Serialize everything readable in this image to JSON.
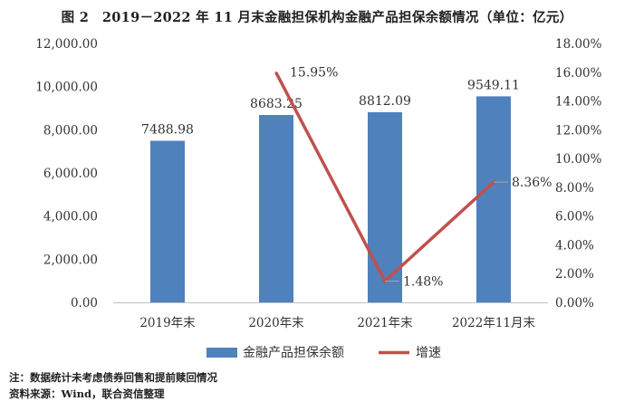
{
  "figure_title": "图 2　2019－2022 年 11 月末金融担保机构金融产品担保余额情况（单位：亿元）",
  "chart_data": {
    "type": "bar",
    "categories": [
      "2019年末",
      "2020年末",
      "2021年末",
      "2022年11月末"
    ],
    "series": [
      {
        "name": "金融产品担保余额",
        "type": "bar",
        "axis": "left",
        "values": [
          7488.98,
          8683.25,
          8812.09,
          9549.11
        ],
        "labels": [
          "7488.98",
          "8683.25",
          "8812.09",
          "9549.11"
        ]
      },
      {
        "name": "增速",
        "type": "line",
        "axis": "right",
        "values": [
          null,
          15.95,
          1.48,
          8.36
        ],
        "labels": [
          "",
          "15.95%",
          "1.48%",
          "8.36%"
        ]
      }
    ],
    "ylim_left": [
      0,
      12000
    ],
    "ylim_right": [
      0,
      18
    ],
    "yticks_left": [
      "0.00",
      "2,000.00",
      "4,000.00",
      "6,000.00",
      "8,000.00",
      "10,000.00",
      "12,000.00"
    ],
    "yticks_right": [
      "0.00%",
      "2.00%",
      "4.00%",
      "6.00%",
      "8.00%",
      "10.00%",
      "12.00%",
      "14.00%",
      "16.00%",
      "18.00%"
    ],
    "grid": false,
    "legend_position": "bottom",
    "colors": {
      "bar": "#4F81BD",
      "line": "#C0504D",
      "axis": "#BFBFBF"
    }
  },
  "footnote": {
    "note": "注：数据统计未考虑债券回售和提前赎回情况",
    "source": "资料来源：Wind，联合资信整理"
  }
}
